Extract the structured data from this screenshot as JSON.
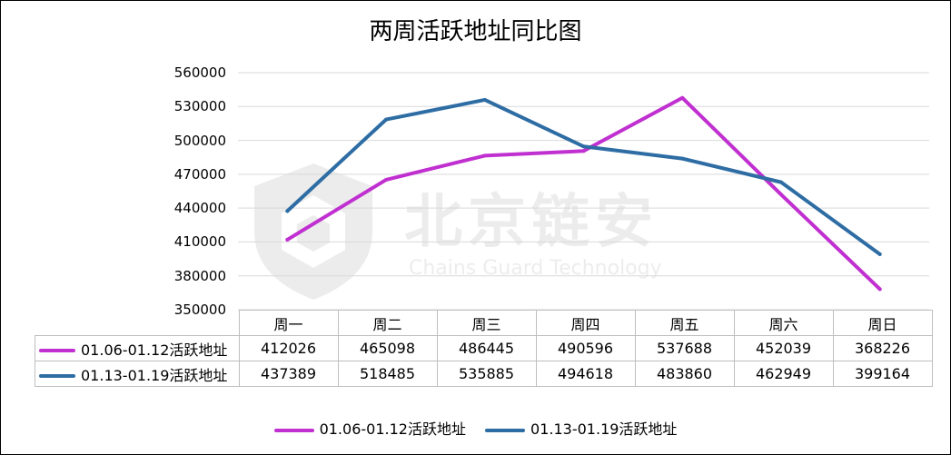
{
  "chart_data": {
    "type": "line",
    "title": "两周活跃地址同比图",
    "categories": [
      "周一",
      "周二",
      "周三",
      "周四",
      "周五",
      "周六",
      "周日"
    ],
    "series": [
      {
        "name": "01.06-01.12活跃地址",
        "color": "#c030d0",
        "values": [
          412026,
          465098,
          486445,
          490596,
          537688,
          452039,
          368226
        ],
        "labels": [
          "412026",
          "465098",
          "486445",
          "490596",
          "537688",
          "452039",
          "368226"
        ]
      },
      {
        "name": "01.13-01.19活跃地址",
        "color": "#2e6da4",
        "values": [
          437389,
          518485,
          535885,
          494618,
          483860,
          462949,
          399164
        ],
        "labels": [
          "437389",
          "518485",
          "535885",
          "494618",
          "483860",
          "462949",
          "399164"
        ]
      }
    ],
    "ylim": [
      350000,
      560000
    ],
    "yticks": [
      "350000",
      "380000",
      "410000",
      "440000",
      "470000",
      "500000",
      "530000",
      "560000"
    ],
    "grid": true,
    "legend_position": "bottom",
    "data_table": true
  },
  "watermark": {
    "text": "北京链安",
    "subtitle": "Chains Guard Technology"
  }
}
